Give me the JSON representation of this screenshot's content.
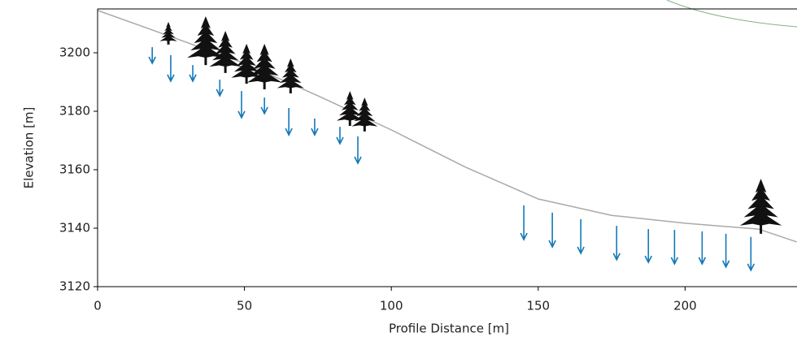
{
  "chart_data": {
    "type": "line",
    "xlabel": "Profile Distance [m]",
    "ylabel": "Elevation [m]",
    "xlim": [
      0,
      238
    ],
    "ylim": [
      3120,
      3215
    ],
    "xticks": [
      0,
      50,
      100,
      150,
      200
    ],
    "yticks": [
      3120,
      3140,
      3160,
      3180,
      3200
    ],
    "profile": {
      "color": "#a9a9a9",
      "x": [
        0,
        25,
        50,
        75,
        100,
        125,
        150,
        175,
        200,
        225,
        238
      ],
      "y": [
        3214.5,
        3205.5,
        3196.4,
        3185.3,
        3173.6,
        3161,
        3150,
        3144.4,
        3141.7,
        3139.7,
        3135.3
      ]
    },
    "arrows": {
      "color": "#1479b8",
      "x": [
        18.6,
        24.9,
        32.4,
        41.6,
        49.0,
        56.8,
        65.1,
        73.9,
        82.5,
        88.6,
        145.1,
        154.8,
        164.5,
        176.7,
        187.5,
        196.4,
        205.8,
        213.9,
        222.4
      ],
      "y_start": [
        3201.9,
        3199.2,
        3195.8,
        3190.8,
        3186.9,
        3184.7,
        3181.1,
        3177.5,
        3174.7,
        3171.4,
        3147.8,
        3145.3,
        3143.1,
        3140.8,
        3139.7,
        3139.4,
        3138.9,
        3138.1,
        3137.0
      ],
      "y_end": [
        3196.4,
        3190.3,
        3190.3,
        3185.3,
        3177.8,
        3179.2,
        3171.9,
        3171.9,
        3168.9,
        3162.2,
        3136.1,
        3133.6,
        3131.4,
        3129.2,
        3128.3,
        3127.8,
        3127.8,
        3126.7,
        3125.6
      ]
    },
    "trees": {
      "color": "#111111",
      "x": [
        24.1,
        36.8,
        43.5,
        50.7,
        56.8,
        65.7,
        85.9,
        90.9,
        225.8
      ],
      "base": [
        3202.8,
        3195.8,
        3193.1,
        3189.4,
        3187.5,
        3186.1,
        3175,
        3173.1,
        3138.1
      ],
      "top": [
        3210.6,
        3212.5,
        3207.5,
        3203.1,
        3203.1,
        3198.1,
        3186.9,
        3184.7,
        3156.9
      ]
    }
  }
}
